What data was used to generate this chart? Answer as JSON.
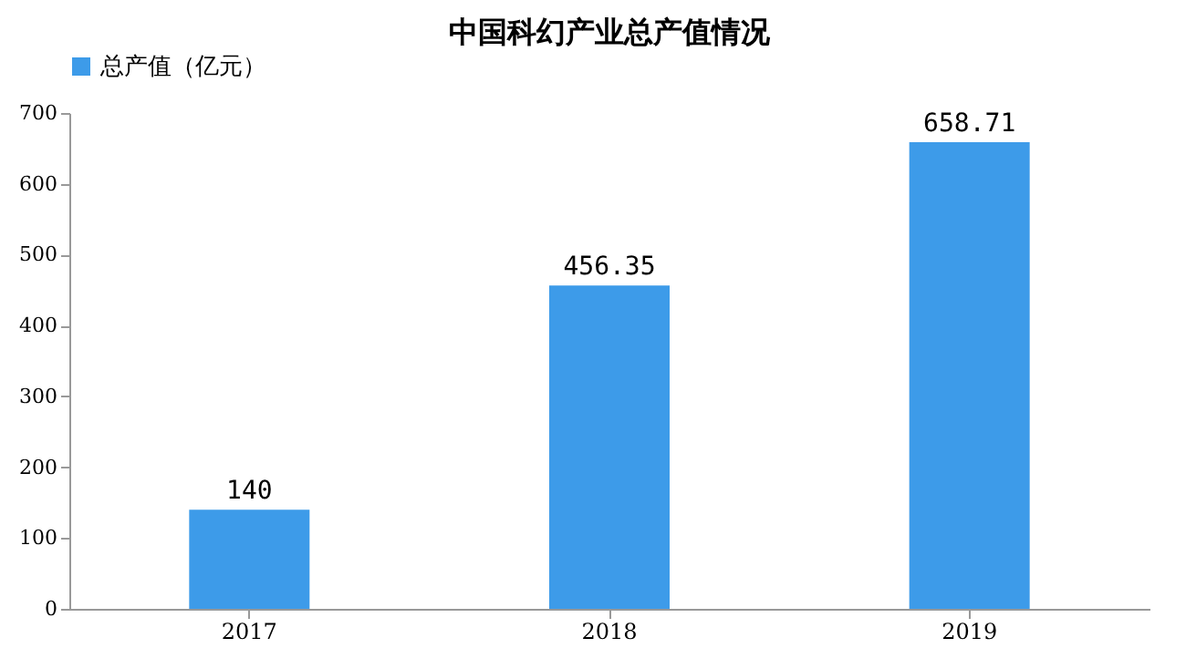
{
  "chart_data": {
    "type": "bar",
    "title": "中国科幻产业总产值情况",
    "categories": [
      "2017",
      "2018",
      "2019"
    ],
    "series": [
      {
        "name": "总产值（亿元）",
        "color": "#3d9be9",
        "values": [
          140,
          456.35,
          658.71
        ]
      }
    ],
    "ylim": [
      0,
      700
    ],
    "yticks": [
      0,
      100,
      200,
      300,
      400,
      500,
      600,
      700
    ],
    "data_labels": true,
    "grid": false,
    "legend": "top"
  }
}
